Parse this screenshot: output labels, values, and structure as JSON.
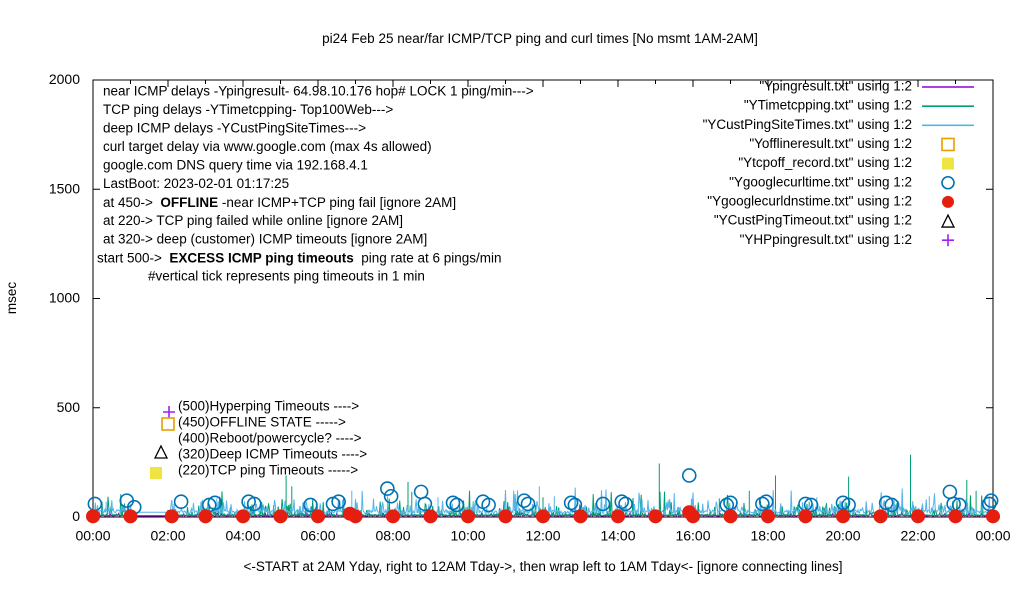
{
  "title": "pi24 Feb 25  near/far ICMP/TCP ping and curl times [No msmt 1AM-2AM]",
  "axes": {
    "y": {
      "label": "msec",
      "range": [
        0,
        2000
      ],
      "ticks": [
        {
          "v": 0,
          "label": "0"
        },
        {
          "v": 500,
          "label": "500"
        },
        {
          "v": 1000,
          "label": "1000"
        },
        {
          "v": 1500,
          "label": "1500"
        },
        {
          "v": 2000,
          "label": "2000"
        }
      ]
    },
    "x": {
      "label": "<-START at 2AM Yday, right to 12AM Tday->, then wrap left to 1AM Tday<- [ignore connecting lines]",
      "range_hours": [
        0,
        24
      ],
      "minor_tick_every_h": 1,
      "ticks": [
        {
          "h": 0,
          "label": "00:00"
        },
        {
          "h": 2,
          "label": "02:00"
        },
        {
          "h": 4,
          "label": "04:00"
        },
        {
          "h": 6,
          "label": "06:00"
        },
        {
          "h": 8,
          "label": "08:00"
        },
        {
          "h": 10,
          "label": "10:00"
        },
        {
          "h": 12,
          "label": "12:00"
        },
        {
          "h": 14,
          "label": "14:00"
        },
        {
          "h": 16,
          "label": "16:00"
        },
        {
          "h": 18,
          "label": "18:00"
        },
        {
          "h": 20,
          "label": "20:00"
        },
        {
          "h": 22,
          "label": "22:00"
        },
        {
          "h": 24,
          "label": "00:00"
        }
      ]
    }
  },
  "legend": {
    "entries": [
      {
        "label": "\"Ypingresult.txt\" using 1:2",
        "symbol": "line",
        "color": "#9400d3"
      },
      {
        "label": "\"YTimetcpping.txt\" using 1:2",
        "symbol": "line",
        "color": "#009e73"
      },
      {
        "label": "\"YCustPingSiteTimes.txt\" using 1:2",
        "symbol": "line",
        "color": "#56b4e9"
      },
      {
        "label": "\"Yofflineresult.txt\" using 1:2",
        "symbol": "open-square",
        "color": "#e69f00"
      },
      {
        "label": "\"Ytcpoff_record.txt\" using 1:2",
        "symbol": "filled-square",
        "color": "#f0e442"
      },
      {
        "label": "\"Ygooglecurltime.txt\" using 1:2",
        "symbol": "open-circle",
        "color": "#0072b2"
      },
      {
        "label": "\"Ygooglecurldnstime.txt\" using 1:2",
        "symbol": "filled-circle",
        "color": "#e51e10"
      },
      {
        "label": "\"YCustPingTimeout.txt\" using 1:2",
        "symbol": "open-triangle",
        "color": "#000000"
      },
      {
        "label": "\"YHPpingresult.txt\" using 1:2",
        "symbol": "plus",
        "color": "#a020f0"
      }
    ]
  },
  "info_lines": [
    {
      "text": "near ICMP delays -Ypingresult- 64.98.10.176 hop# LOCK 1 ping/min--->"
    },
    {
      "text": "TCP ping delays -YTimetcpping- Top100Web--->"
    },
    {
      "text": "deep ICMP delays -YCustPingSiteTimes--->"
    },
    {
      "text": "curl target delay via www.google.com (max 4s allowed)"
    },
    {
      "text": "google.com DNS query time via 192.168.4.1"
    },
    {
      "text": "LastBoot: 2023-02-01 01:17:25"
    },
    {
      "parts": [
        {
          "t": "at 450->  ",
          "b": 0
        },
        {
          "t": "OFFLINE",
          "b": 1
        },
        {
          "t": " -near ICMP+TCP ping fail [ignore 2AM]",
          "b": 0
        }
      ]
    },
    {
      "text": "at 220-> TCP ping failed while online [ignore 2AM]"
    },
    {
      "text": "at 320-> deep (customer) ICMP timeouts [ignore 2AM]"
    },
    {
      "parts": [
        {
          "t": "start 500->  ",
          "b": 0
        },
        {
          "t": "EXCESS ICMP ping timeouts",
          "b": 1
        },
        {
          "t": "  ping rate at 6 pings/min",
          "b": 0
        }
      ]
    },
    {
      "text": "#vertical tick represents ping timeouts in 1 min"
    }
  ],
  "threshold_labels": [
    {
      "value": 500,
      "text": "(500)Hyperping Timeouts ---->",
      "marker": "plus",
      "color": "#a020f0"
    },
    {
      "value": 450,
      "text": "(450)OFFLINE STATE ----->",
      "marker": "open-square",
      "color": "#e69f00"
    },
    {
      "value": 400,
      "text": "(400)Reboot/powercycle? ---->",
      "marker": "none",
      "color": "#000000"
    },
    {
      "value": 320,
      "text": "(320)Deep ICMP Timeouts ---->",
      "marker": "open-triangle",
      "color": "#000000"
    },
    {
      "value": 220,
      "text": "(220)TCP ping Timeouts ----->",
      "marker": "filled-square",
      "color": "#f0e442"
    }
  ],
  "chart_data": {
    "type": "line",
    "title": "pi24 Feb 25  near/far ICMP/TCP ping and curl times [No msmt 1AM-2AM]",
    "xlabel": "<-START at 2AM Yday, right to 12AM Tday->, then wrap left to 1AM Tday<- [ignore connecting lines]",
    "ylabel": "msec",
    "x_unit": "hours",
    "xlim": [
      0,
      24
    ],
    "ylim": [
      0,
      2000
    ],
    "grid": false,
    "legend_position": "top-right",
    "no_measurement_gap_hours": [
      1.03,
      2.03
    ],
    "series": [
      {
        "name": "Ypingresult near-ICMP delay",
        "style": "line",
        "color": "#9400d3",
        "baseline_ms": 4,
        "noise_max_ms": 16,
        "noise_chance": 0.35,
        "seed": 11,
        "spikes": [
          [
            5.45,
            35
          ],
          [
            9.8,
            30
          ],
          [
            14.6,
            28
          ],
          [
            18.6,
            30
          ]
        ]
      },
      {
        "name": "YTimetcpping TCP ping delay",
        "style": "line",
        "color": "#009e73",
        "baseline_ms": 7,
        "noise_max_ms": 60,
        "noise_chance": 0.28,
        "rare_chance": 0.025,
        "rare_max_ms": 120,
        "seed": 22,
        "spikes": [
          [
            5.15,
            190
          ],
          [
            5.3,
            140
          ],
          [
            8.4,
            160
          ],
          [
            8.5,
            115
          ],
          [
            12.0,
            90
          ],
          [
            15.1,
            245
          ],
          [
            16.7,
            85
          ],
          [
            17.5,
            120
          ],
          [
            18.2,
            190
          ],
          [
            20.15,
            185
          ],
          [
            21.8,
            285
          ],
          [
            23.3,
            170
          ],
          [
            23.55,
            120
          ]
        ]
      },
      {
        "name": "YCustPingSiteTimes deep ICMP delay",
        "style": "line",
        "color": "#56b4e9",
        "baseline_ms": 22,
        "noise_max_ms": 55,
        "noise_chance": 0.4,
        "rare_chance": 0.02,
        "rare_max_ms": 110,
        "jitter_ms": 16,
        "seed": 33,
        "spikes": [
          [
            0.35,
            70
          ],
          [
            3.3,
            85
          ],
          [
            6.9,
            120
          ],
          [
            7.85,
            95
          ],
          [
            9.2,
            90
          ],
          [
            11.9,
            140
          ],
          [
            12.3,
            95
          ],
          [
            15.5,
            110
          ],
          [
            19.3,
            90
          ],
          [
            22.3,
            95
          ]
        ]
      },
      {
        "name": "Ygooglecurltime curl delay",
        "style": "open-circle",
        "color": "#0072b2",
        "points": [
          [
            0.05,
            60
          ],
          [
            0.9,
            75
          ],
          [
            1.1,
            45
          ],
          [
            2.35,
            70
          ],
          [
            3.1,
            55
          ],
          [
            3.25,
            65
          ],
          [
            4.15,
            70
          ],
          [
            4.3,
            60
          ],
          [
            5.8,
            55
          ],
          [
            6.4,
            60
          ],
          [
            6.55,
            70
          ],
          [
            7.85,
            130
          ],
          [
            7.95,
            95
          ],
          [
            8.75,
            115
          ],
          [
            8.85,
            60
          ],
          [
            9.6,
            65
          ],
          [
            9.7,
            55
          ],
          [
            10.4,
            70
          ],
          [
            10.55,
            55
          ],
          [
            11.5,
            75
          ],
          [
            11.6,
            60
          ],
          [
            12.75,
            65
          ],
          [
            12.85,
            55
          ],
          [
            13.6,
            60
          ],
          [
            14.1,
            70
          ],
          [
            14.2,
            60
          ],
          [
            15.9,
            190
          ],
          [
            16.9,
            55
          ],
          [
            17.0,
            65
          ],
          [
            17.85,
            60
          ],
          [
            17.95,
            70
          ],
          [
            19.0,
            60
          ],
          [
            19.15,
            55
          ],
          [
            20.0,
            65
          ],
          [
            20.15,
            55
          ],
          [
            21.15,
            65
          ],
          [
            21.3,
            55
          ],
          [
            22.85,
            115
          ],
          [
            22.95,
            60
          ],
          [
            23.1,
            55
          ],
          [
            23.9,
            60
          ],
          [
            23.95,
            75
          ]
        ]
      },
      {
        "name": "Ygooglecurldnstime DNS query time",
        "style": "filled-circle",
        "color": "#e51e10",
        "points": [
          [
            0,
            3
          ],
          [
            1,
            3
          ],
          [
            2.1,
            3
          ],
          [
            3,
            3
          ],
          [
            4,
            3
          ],
          [
            5,
            3
          ],
          [
            6,
            3
          ],
          [
            6.85,
            15
          ],
          [
            7,
            3
          ],
          [
            8,
            3
          ],
          [
            9,
            3
          ],
          [
            10,
            3
          ],
          [
            11,
            3
          ],
          [
            12,
            3
          ],
          [
            13,
            3
          ],
          [
            14,
            3
          ],
          [
            15,
            3
          ],
          [
            15.9,
            22
          ],
          [
            16,
            3
          ],
          [
            17,
            3
          ],
          [
            18,
            3
          ],
          [
            19,
            3
          ],
          [
            20,
            3
          ],
          [
            21,
            3
          ],
          [
            22,
            3
          ],
          [
            23,
            3
          ],
          [
            24,
            3
          ]
        ]
      },
      {
        "name": "Yofflineresult OFFLINE state",
        "style": "open-square",
        "color": "#e69f00",
        "points": []
      },
      {
        "name": "Ytcpoff_record TCP-off record",
        "style": "filled-square",
        "color": "#f0e442",
        "points": []
      },
      {
        "name": "YCustPingTimeout deep timeouts",
        "style": "open-triangle",
        "color": "#000000",
        "points": []
      },
      {
        "name": "YHPpingresult hyperping",
        "style": "plus",
        "color": "#a020f0",
        "points": []
      }
    ]
  }
}
